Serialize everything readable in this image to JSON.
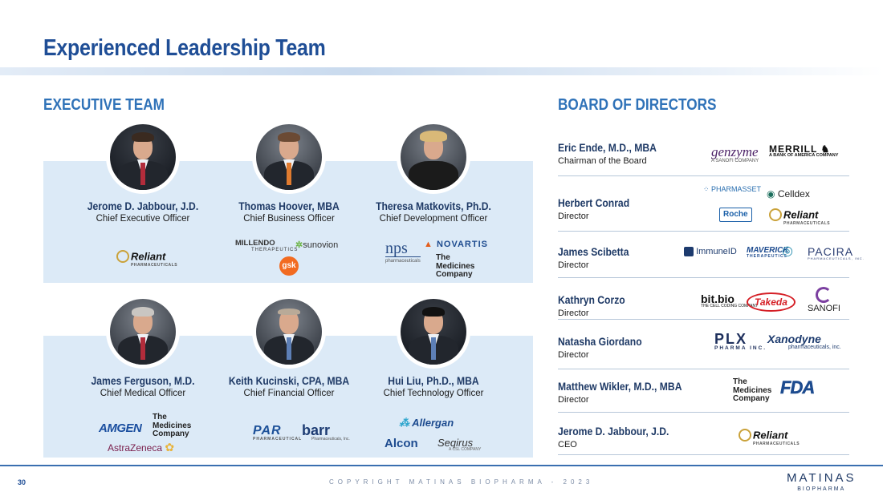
{
  "title": "Experienced Leadership Team",
  "executive_header": "EXECUTIVE TEAM",
  "board_header": "BOARD OF DIRECTORS",
  "executives": [
    {
      "name": "Jerome D. Jabbour, J.D.",
      "role": "Chief Executive Officer",
      "logos": [
        "Reliant"
      ]
    },
    {
      "name": "Thomas Hoover, MBA",
      "role": "Chief Business Officer",
      "logos": [
        "MILLENDO",
        "sunovion",
        "gsk"
      ]
    },
    {
      "name": "Theresa Matkovits, Ph.D.",
      "role": "Chief Development Officer",
      "logos": [
        "nps",
        "NOVARTIS",
        "The Medicines Company"
      ]
    },
    {
      "name": "James Ferguson, M.D.",
      "role": "Chief Medical Officer",
      "logos": [
        "AMGEN",
        "The Medicines Company",
        "AstraZeneca"
      ]
    },
    {
      "name": "Keith Kucinski, CPA, MBA",
      "role": "Chief Financial Officer",
      "logos": [
        "PAR",
        "barr"
      ]
    },
    {
      "name": "Hui Liu, Ph.D., MBA",
      "role": "Chief Technology Officer",
      "logos": [
        "Allergan",
        "Alcon",
        "Seqirus"
      ]
    }
  ],
  "logo_text": {
    "reliant": "Reliant",
    "reliant_sub": "PHARMACEUTICALS",
    "millendo": "MILLENDO",
    "millendo_sub": "THERAPEUTICS",
    "sunovion": "sunovion",
    "gsk": "gsk",
    "nps": "nps",
    "nps_sub": "pharmaceuticals",
    "novartis": "NOVARTIS",
    "medco_1": "The",
    "medco_2": "Medicines",
    "medco_3": "Company",
    "amgen": "AMGEN",
    "astra": "AstraZeneca",
    "par": "PAR",
    "par_sub": "PHARMACEUTICAL",
    "barr": "barr",
    "barr_sub": "Pharmaceuticals, Inc.",
    "allergan": "Allergan",
    "alcon": "Alcon",
    "seqirus": "Seqirus",
    "seqirus_sub": "A CSL COMPANY",
    "genzyme": "genzyme",
    "genzyme_sub": "A SANOFI COMPANY",
    "merrill": "MERRILL",
    "merrill_sub": "A BANK OF AMERICA COMPANY",
    "pharmasset": "PHARMASSET",
    "celldex": "Celldex",
    "roche": "Roche",
    "immune": "ImmuneID",
    "maverick": "MAVERICK",
    "maverick_sub": "THERAPEUTICS",
    "pacira": "PACIRA",
    "pacira_sub": "PHARMACEUTICALS, INC.",
    "bitbio": "bit.bio",
    "bitbio_sub": "THE CELL CODING COMPANY",
    "takeda": "Takeda",
    "sanofi": "SANOFI",
    "plx": "PLX",
    "plx_sub": "PHARMA INC.",
    "xanodyne": "Xanodyne",
    "xanodyne_sub": "pharmaceuticals, inc.",
    "fda": "FDA"
  },
  "directors": [
    {
      "name": "Eric Ende, M.D., MBA",
      "role": "Chairman of the Board"
    },
    {
      "name": "Herbert Conrad",
      "role": "Director"
    },
    {
      "name": "James Scibetta",
      "role": "Director"
    },
    {
      "name": "Kathryn Corzo",
      "role": "Director"
    },
    {
      "name": "Natasha Giordano",
      "role": "Director"
    },
    {
      "name": "Matthew Wikler, M.D., MBA",
      "role": "Director"
    },
    {
      "name": "Jerome D. Jabbour, J.D.",
      "role": "CEO"
    }
  ],
  "footer": {
    "page_number": "30",
    "copyright": "COPYRIGHT MATINAS BIOPHARMA - 2023",
    "brand": "MATINAS",
    "brand_sub": "BIOPHARMA"
  },
  "colors": {
    "title": "#1f4e96",
    "section_header": "#2f72b8",
    "band": "#dceaf7",
    "name": "#1f3a66"
  }
}
